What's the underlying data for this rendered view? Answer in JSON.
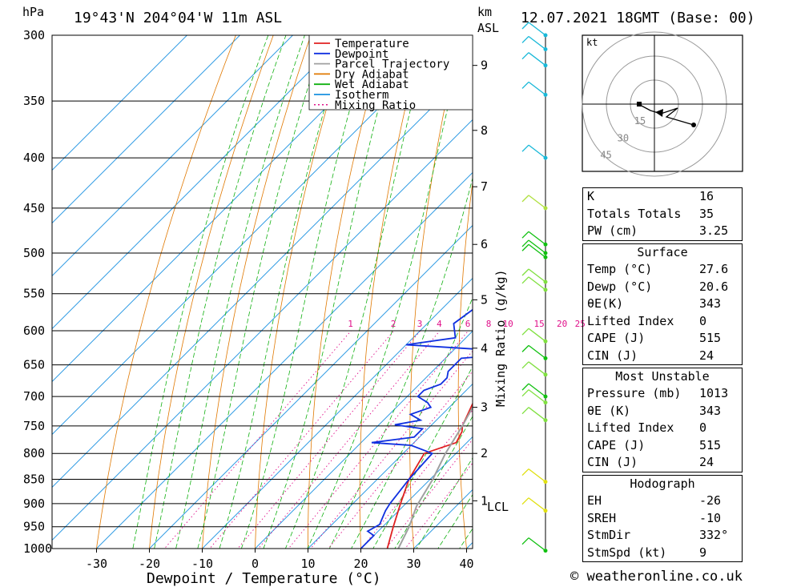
{
  "header": {
    "location": "19°43'N 204°04'W 11m ASL",
    "datetime": "12.07.2021 18GMT (Base: 00)",
    "hpa_unit": "hPa",
    "km_unit": "km",
    "asl_unit": "ASL"
  },
  "legend": [
    {
      "label": "Temperature",
      "color": "#e02020",
      "dash": ""
    },
    {
      "label": "Dewpoint",
      "color": "#1030e0",
      "dash": ""
    },
    {
      "label": "Parcel Trajectory",
      "color": "#a0a0a0",
      "dash": ""
    },
    {
      "label": "Dry Adiabat",
      "color": "#e07800",
      "dash": ""
    },
    {
      "label": "Wet Adiabat",
      "color": "#10b010",
      "dash": ""
    },
    {
      "label": "Isotherm",
      "color": "#1890e0",
      "dash": ""
    },
    {
      "label": "Mixing Ratio",
      "color": "#e0108a",
      "dash": "2,3"
    }
  ],
  "chart_data": {
    "type": "line",
    "xlabel": "Dewpoint / Temperature (°C)",
    "ylabel": "hPa",
    "secondary_ylabel": "Mixing Ratio (g/kg)",
    "pressure_levels": [
      300,
      350,
      400,
      450,
      500,
      550,
      600,
      650,
      700,
      750,
      800,
      850,
      900,
      950,
      1000
    ],
    "x_ticks": [
      -30,
      -20,
      -10,
      0,
      10,
      20,
      30,
      40
    ],
    "xlim": [
      -40,
      40
    ],
    "ylim": [
      1000,
      300
    ],
    "km_ticks": [
      {
        "label": "9",
        "p": 322
      },
      {
        "label": "8",
        "p": 375
      },
      {
        "label": "7",
        "p": 428
      },
      {
        "label": "6",
        "p": 490
      },
      {
        "label": "5",
        "p": 558
      },
      {
        "label": "4",
        "p": 625
      },
      {
        "label": "3",
        "p": 718
      },
      {
        "label": "2",
        "p": 800
      },
      {
        "label": "1",
        "p": 894
      }
    ],
    "lcl_label": "LCL",
    "lcl_p": 905,
    "mixing_ratio_labels": [
      "1",
      "2",
      "3",
      "4",
      "6",
      "8",
      "10",
      "15",
      "20",
      "25"
    ],
    "series": [
      {
        "name": "Temperature",
        "color": "#e02020",
        "points": [
          [
            1013,
            27.6
          ],
          [
            1000,
            25
          ],
          [
            950,
            22
          ],
          [
            900,
            19
          ],
          [
            850,
            16
          ],
          [
            800,
            14
          ],
          [
            780,
            18
          ],
          [
            760,
            17
          ],
          [
            750,
            16
          ],
          [
            700,
            13
          ],
          [
            650,
            10
          ],
          [
            630,
            10
          ],
          [
            600,
            7.5
          ],
          [
            550,
            4
          ],
          [
            500,
            -2
          ],
          [
            480,
            -3
          ],
          [
            450,
            -7
          ],
          [
            430,
            -10
          ],
          [
            400,
            -14
          ],
          [
            370,
            -19
          ],
          [
            350,
            -23
          ],
          [
            300,
            -33
          ]
        ]
      },
      {
        "name": "Dewpoint",
        "color": "#1030e0",
        "points": [
          [
            1013,
            20.6
          ],
          [
            1000,
            20
          ],
          [
            970,
            20
          ],
          [
            960,
            18
          ],
          [
            945,
            19
          ],
          [
            925,
            18
          ],
          [
            915,
            17.5
          ],
          [
            900,
            17
          ],
          [
            850,
            16
          ],
          [
            800,
            15.5
          ],
          [
            785,
            10
          ],
          [
            780,
            2
          ],
          [
            770,
            9
          ],
          [
            755,
            9
          ],
          [
            748,
            3
          ],
          [
            740,
            7
          ],
          [
            730,
            4
          ],
          [
            718,
            6.5
          ],
          [
            710,
            5
          ],
          [
            700,
            2
          ],
          [
            690,
            2
          ],
          [
            680,
            4
          ],
          [
            670,
            4
          ],
          [
            660,
            3
          ],
          [
            650,
            3
          ],
          [
            640,
            3
          ],
          [
            635,
            10
          ],
          [
            630,
            12
          ],
          [
            620,
            -10
          ],
          [
            610,
            -2
          ],
          [
            590,
            -5
          ],
          [
            570,
            -4
          ],
          [
            550,
            -2
          ],
          [
            530,
            -9
          ],
          [
            510,
            1
          ],
          [
            500,
            -6
          ],
          [
            495,
            -6.5
          ],
          [
            490,
            -1
          ],
          [
            480,
            -5
          ],
          [
            440,
            -5
          ],
          [
            420,
            -9
          ],
          [
            410,
            -12
          ],
          [
            400,
            -15
          ],
          [
            370,
            -19
          ],
          [
            350,
            -30
          ],
          [
            320,
            -38
          ],
          [
            300,
            -41
          ]
        ]
      },
      {
        "name": "Parcel Trajectory",
        "color": "#a0a0a0",
        "points": [
          [
            1013,
            27.6
          ],
          [
            950,
            25
          ],
          [
            905,
            22.5
          ],
          [
            850,
            20.5
          ],
          [
            800,
            18
          ],
          [
            750,
            16
          ],
          [
            700,
            13.5
          ],
          [
            650,
            10.5
          ],
          [
            600,
            7.5
          ],
          [
            550,
            4
          ],
          [
            500,
            0
          ],
          [
            450,
            -5
          ],
          [
            400,
            -11.5
          ],
          [
            350,
            -20
          ],
          [
            300,
            -30
          ]
        ]
      }
    ]
  },
  "hodograph": {
    "unit": "kt",
    "rings": [
      "15",
      "30",
      "45"
    ]
  },
  "indices": [
    {
      "label": "K",
      "value": "16"
    },
    {
      "label": "Totals Totals",
      "value": "35"
    },
    {
      "label": "PW (cm)",
      "value": "3.25"
    }
  ],
  "surface": {
    "title": "Surface",
    "rows": [
      {
        "label": "Temp (°C)",
        "value": "27.6"
      },
      {
        "label": "Dewp (°C)",
        "value": "20.6"
      },
      {
        "label": "θE(K)",
        "value": "343"
      },
      {
        "label": "Lifted Index",
        "value": "0"
      },
      {
        "label": "CAPE (J)",
        "value": "515"
      },
      {
        "label": "CIN (J)",
        "value": "24"
      }
    ]
  },
  "most_unstable": {
    "title": "Most Unstable",
    "rows": [
      {
        "label": "Pressure (mb)",
        "value": "1013"
      },
      {
        "label": "θE (K)",
        "value": "343"
      },
      {
        "label": "Lifted Index",
        "value": "0"
      },
      {
        "label": "CAPE (J)",
        "value": "515"
      },
      {
        "label": "CIN (J)",
        "value": "24"
      }
    ]
  },
  "hodograph_stats": {
    "title": "Hodograph",
    "rows": [
      {
        "label": "EH",
        "value": "-26"
      },
      {
        "label": "SREH",
        "value": "-10"
      },
      {
        "label": "StmDir",
        "value": "332°"
      },
      {
        "label": "StmSpd (kt)",
        "value": "9"
      }
    ]
  },
  "credit": "© weatheronline.co.uk"
}
